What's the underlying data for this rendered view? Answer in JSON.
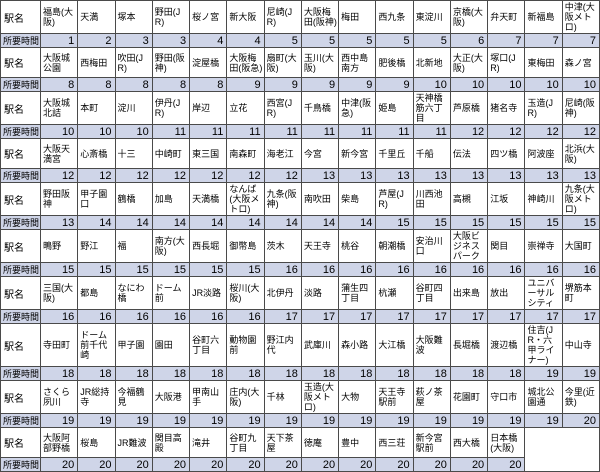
{
  "table": {
    "labels": {
      "station_header": "駅名",
      "time_header": "所要時間"
    },
    "columns": 15,
    "colors": {
      "time_row_bg": "#cfd5e8",
      "station_row_bg": "#ffffff",
      "empty_cell_bg": "#b3b3b3",
      "border": "#4a4a4a"
    },
    "pairs": [
      {
        "stations": [
          "福島(大阪)",
          "天満",
          "塚本",
          "野田(JR)",
          "桜ノ宮",
          "新大阪",
          "尼崎(JR)",
          "大阪梅田(阪神)",
          "梅田",
          "西九条",
          "東淀川",
          "京橋(大阪)",
          "弁天町",
          "新福島",
          "中津(大阪メトロ)"
        ],
        "times": [
          1,
          2,
          3,
          3,
          4,
          4,
          5,
          5,
          5,
          5,
          5,
          6,
          7,
          7,
          7
        ]
      },
      {
        "stations": [
          "大阪城公園",
          "西梅田",
          "吹田(JR)",
          "野田(阪神)",
          "淀屋橋",
          "大阪梅田(阪急)",
          "扇町(大阪)",
          "玉川(大阪)",
          "西中島南方",
          "肥後橋",
          "北新地",
          "大正(大阪)",
          "塚口(JR)",
          "東梅田",
          "森ノ宮"
        ],
        "times": [
          8,
          8,
          8,
          8,
          8,
          9,
          9,
          9,
          9,
          9,
          10,
          10,
          10,
          10,
          10
        ]
      },
      {
        "stations": [
          "大阪城北詰",
          "本町",
          "淀川",
          "伊丹(JR)",
          "岸辺",
          "立花",
          "西宮(JR)",
          "千鳥橋",
          "中津(阪急)",
          "姫島",
          "天神橋筋六丁目",
          "芦原橋",
          "猪名寺",
          "玉造(JR)",
          "尼崎(阪神)"
        ],
        "times": [
          10,
          10,
          10,
          11,
          11,
          11,
          11,
          11,
          11,
          11,
          11,
          12,
          12,
          12,
          12
        ]
      },
      {
        "stations": [
          "大阪天満宮",
          "心斎橋",
          "十三",
          "中崎町",
          "東三国",
          "南森町",
          "海老江",
          "今宮",
          "新今宮",
          "千里丘",
          "千船",
          "伝法",
          "四ツ橋",
          "阿波座",
          "北浜(大阪)"
        ],
        "times": [
          12,
          12,
          12,
          12,
          12,
          12,
          12,
          13,
          13,
          13,
          13,
          13,
          13,
          13,
          13
        ]
      },
      {
        "stations": [
          "野田阪神",
          "甲子園口",
          "鶴橋",
          "加島",
          "天満橋",
          "なんば(大阪メトロ)",
          "九条(阪神)",
          "南吹田",
          "柴島",
          "芦屋(JR)",
          "川西池田",
          "高槻",
          "江坂",
          "神崎川",
          "九条(大阪メトロ)"
        ],
        "times": [
          13,
          14,
          14,
          14,
          14,
          14,
          14,
          14,
          14,
          15,
          15,
          15,
          15,
          15,
          15
        ]
      },
      {
        "stations": [
          "鴫野",
          "野江",
          "福",
          "南方(大阪)",
          "西長堀",
          "御幣島",
          "茨木",
          "天王寺",
          "桃谷",
          "朝潮橋",
          "安治川口",
          "大阪ビジネスパーク",
          "関目",
          "崇禅寺",
          "大国町"
        ],
        "times": [
          15,
          15,
          15,
          15,
          15,
          15,
          16,
          16,
          16,
          16,
          16,
          16,
          16,
          16,
          16
        ]
      },
      {
        "stations": [
          "三国(大阪)",
          "都島",
          "なにわ橋",
          "ドーム前",
          "JR淡路",
          "桜川(大阪)",
          "北伊丹",
          "淡路",
          "蒲生四丁目",
          "杭瀬",
          "谷町四丁目",
          "出来島",
          "放出",
          "ユニバーサルシティ",
          "堺筋本町"
        ],
        "times": [
          16,
          16,
          16,
          16,
          16,
          16,
          17,
          17,
          17,
          17,
          17,
          17,
          17,
          17,
          17
        ]
      },
      {
        "stations": [
          "寺田町",
          "ドーム前千代崎",
          "甲子園",
          "園田",
          "谷町六丁目",
          "動物園前",
          "野江内代",
          "武庫川",
          "森小路",
          "大江橋",
          "大阪難波",
          "長堀橋",
          "渡辺橋",
          "住吉(JR・六甲ライナー)",
          "中山寺"
        ],
        "times": [
          18,
          18,
          18,
          18,
          18,
          18,
          18,
          18,
          18,
          18,
          18,
          18,
          18,
          19,
          19
        ]
      },
      {
        "stations": [
          "さくら夙川",
          "JR総持寺",
          "今福鶴見",
          "大阪港",
          "甲南山手",
          "庄内(大阪)",
          "千林",
          "玉造(大阪メトロ)",
          "大物",
          "天王寺駅前",
          "萩ノ茶屋",
          "花園町",
          "守口市",
          "城北公園通",
          "今里(近鉄)"
        ],
        "times": [
          19,
          19,
          19,
          19,
          19,
          19,
          19,
          19,
          19,
          19,
          19,
          19,
          19,
          19,
          20
        ]
      },
      {
        "stations": [
          "大阪阿部野橋",
          "桜島",
          "JR難波",
          "関目高殿",
          "滝井",
          "谷町九丁目",
          "天下茶屋",
          "徳庵",
          "豊中",
          "西三荘",
          "新今宮駅前",
          "西大橋",
          "日本橋(大阪)"
        ],
        "times": [
          20,
          20,
          20,
          20,
          20,
          20,
          20,
          20,
          20,
          20,
          20,
          20,
          20
        ]
      }
    ]
  }
}
